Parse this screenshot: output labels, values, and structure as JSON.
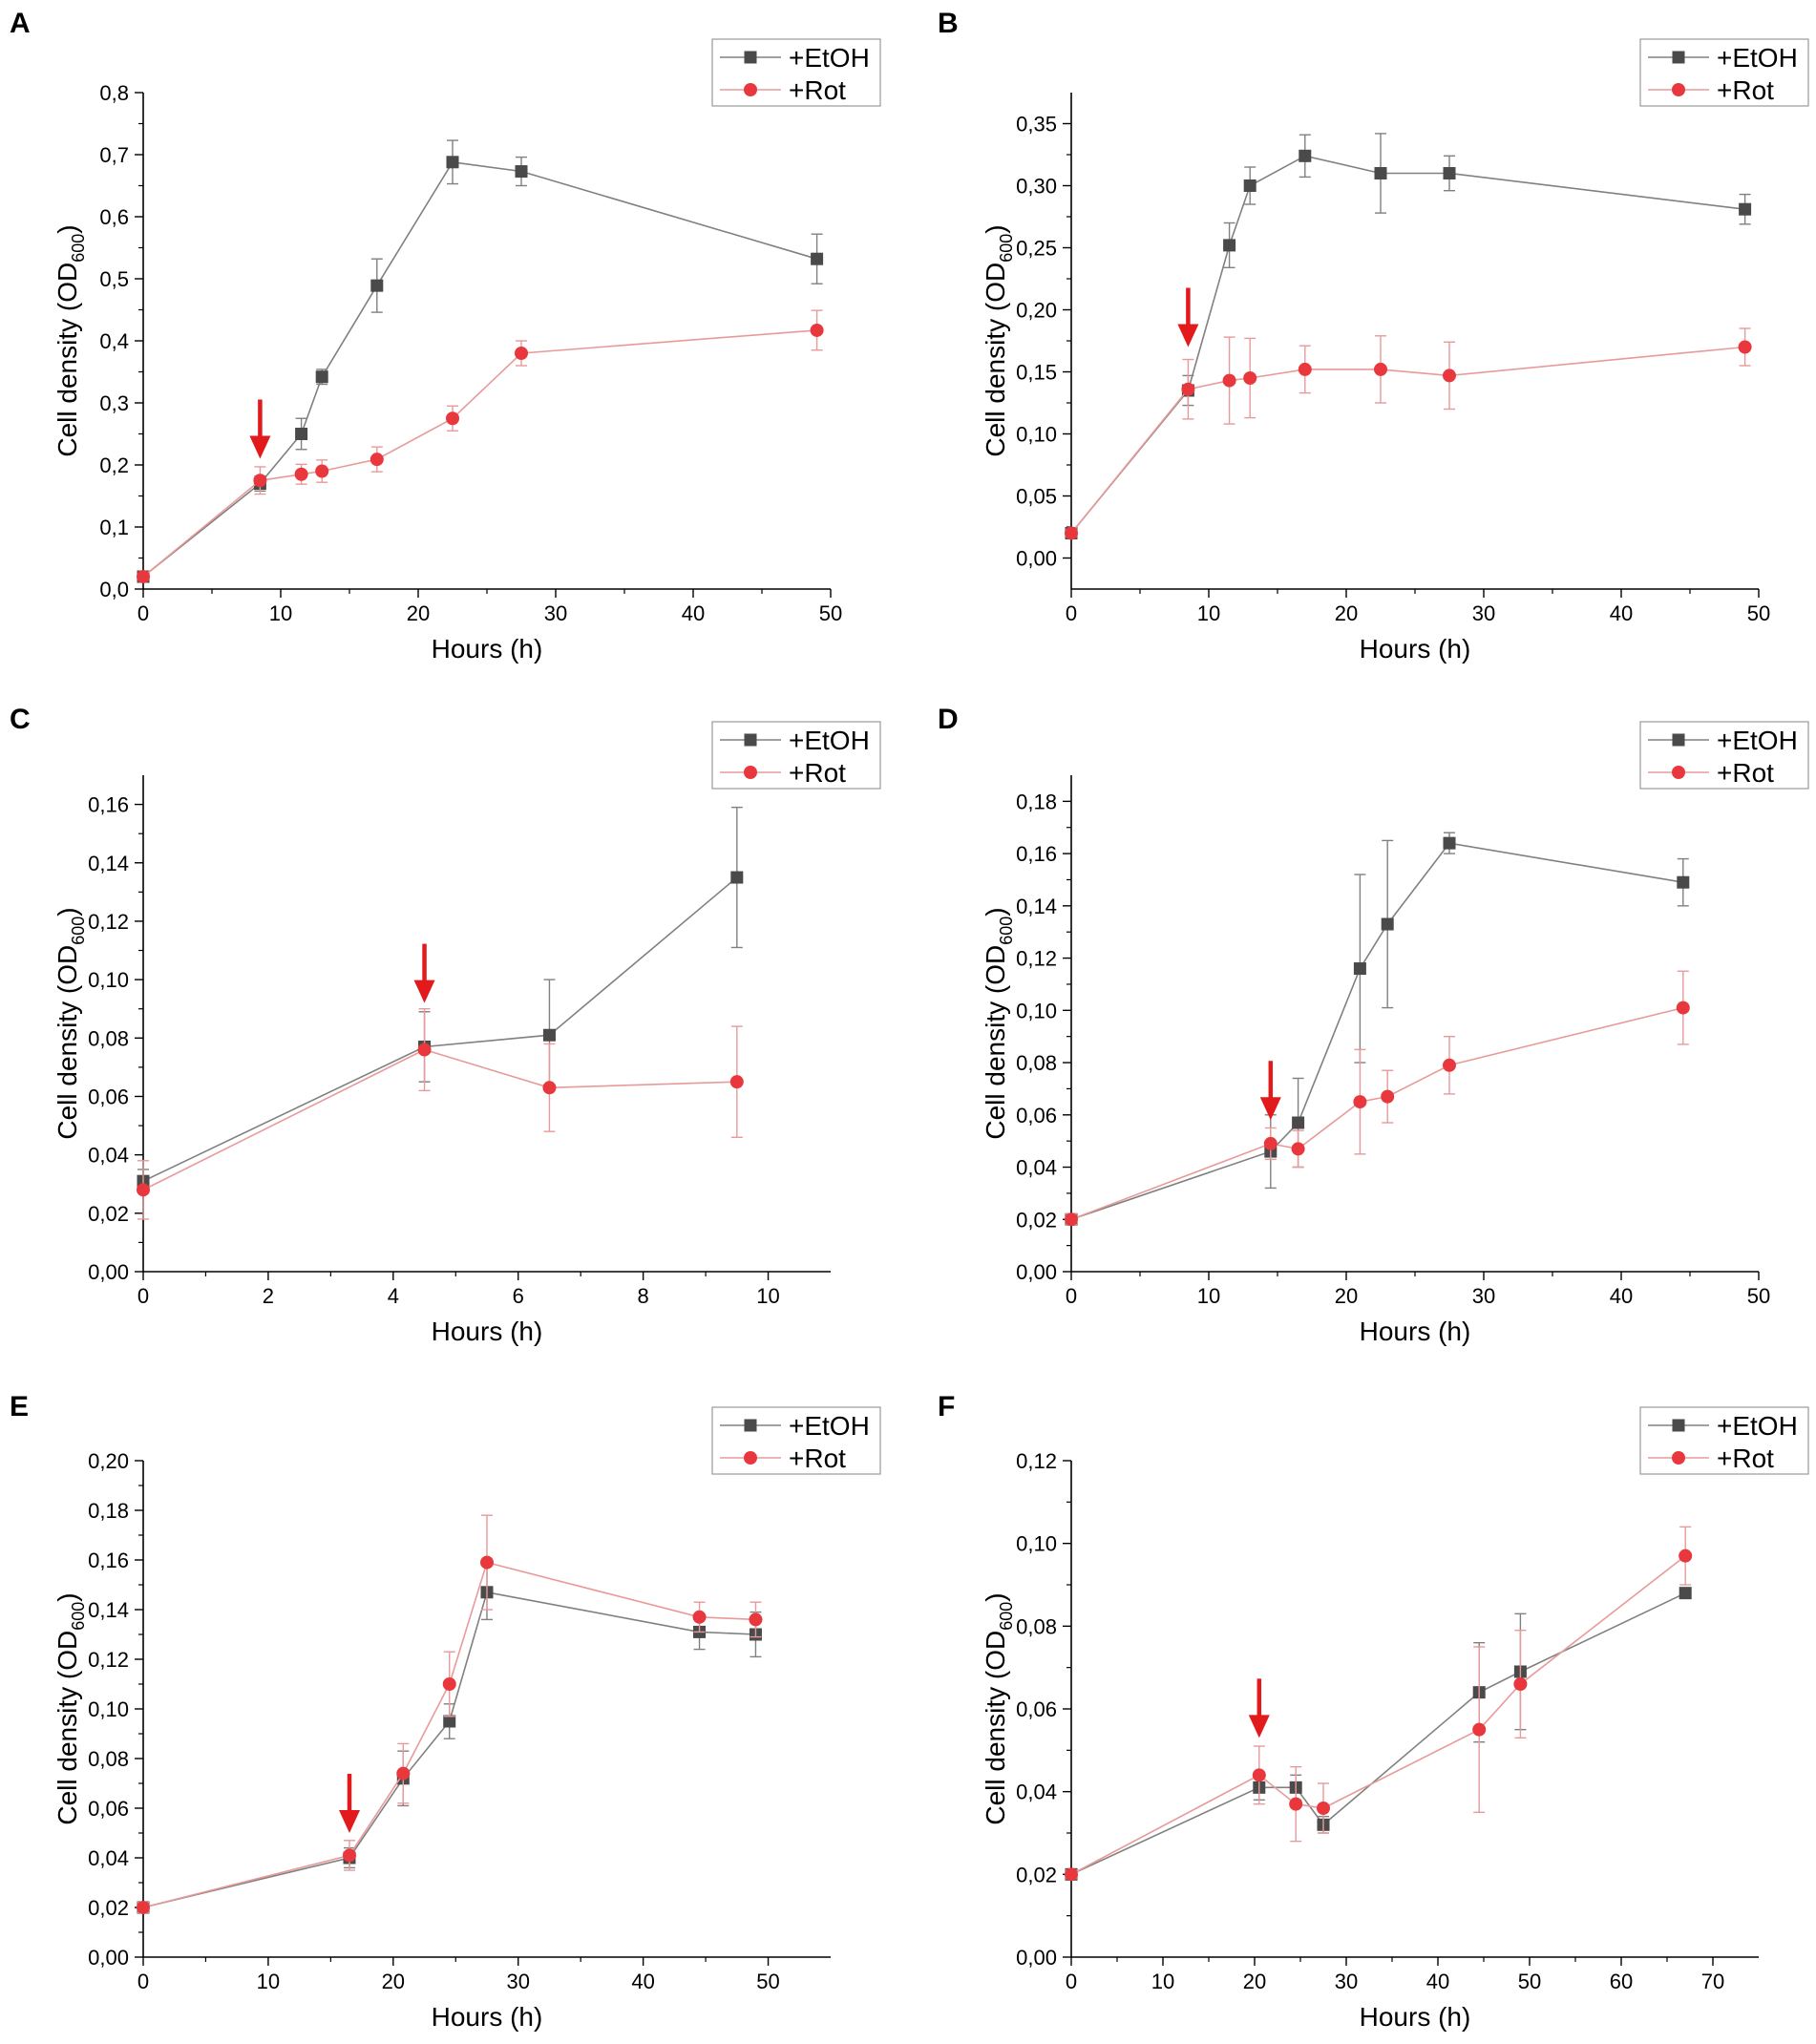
{
  "figure": {
    "legend_labels": [
      "+EtOH",
      "+Rot"
    ]
  },
  "colors": {
    "etoh": "#4a4a4a",
    "etoh_line": "#808080",
    "rot": "#e8383d",
    "rot_line": "#e89a9a",
    "arrow": "#e31a1c"
  },
  "chart_data": [
    {
      "panel": "A",
      "type": "line",
      "xlabel": "Hours (h)",
      "ylabel": "Cell density (OD",
      "ylabel_sub": "600",
      "ylabel_close": ")",
      "xlim": [
        0,
        50
      ],
      "ylim": [
        0,
        0.8
      ],
      "xticks": [
        0,
        10,
        20,
        30,
        40,
        50
      ],
      "xtick_labels": [
        "0",
        "10",
        "20",
        "30",
        "40",
        "50"
      ],
      "yticks": [
        0,
        0.1,
        0.2,
        0.3,
        0.4,
        0.5,
        0.6,
        0.7,
        0.8
      ],
      "ytick_labels": [
        "0,0",
        "0,1",
        "0,2",
        "0,3",
        "0,4",
        "0,5",
        "0,6",
        "0,7",
        "0,8"
      ],
      "arrow_at": [
        8.5,
        0.21
      ],
      "series": [
        {
          "name": "+EtOH",
          "x": [
            0,
            8.5,
            11.5,
            13,
            17,
            22.5,
            27.5,
            49
          ],
          "y": [
            0.02,
            0.17,
            0.25,
            0.342,
            0.489,
            0.688,
            0.673,
            0.532
          ],
          "err": [
            0.003,
            0.012,
            0.025,
            0.012,
            0.043,
            0.035,
            0.023,
            0.04
          ]
        },
        {
          "name": "+Rot",
          "x": [
            0,
            8.5,
            11.5,
            13,
            17,
            22.5,
            27.5,
            49
          ],
          "y": [
            0.02,
            0.175,
            0.185,
            0.19,
            0.209,
            0.275,
            0.38,
            0.417
          ],
          "err": [
            0.003,
            0.022,
            0.016,
            0.018,
            0.02,
            0.02,
            0.02,
            0.032
          ]
        }
      ]
    },
    {
      "panel": "B",
      "type": "line",
      "xlabel": "Hours (h)",
      "ylabel": "Cell density (OD",
      "ylabel_sub": "600",
      "ylabel_close": ")",
      "xlim": [
        0,
        50
      ],
      "ylim": [
        -0.025,
        0.375
      ],
      "xticks": [
        0,
        10,
        20,
        30,
        40,
        50
      ],
      "xtick_labels": [
        "0",
        "10",
        "20",
        "30",
        "40",
        "50"
      ],
      "yticks": [
        0,
        0.05,
        0.1,
        0.15,
        0.2,
        0.25,
        0.3,
        0.35
      ],
      "ytick_labels": [
        "0,00",
        "0,05",
        "0,10",
        "0,15",
        "0,20",
        "0,25",
        "0,30",
        "0,35"
      ],
      "arrow_at": [
        8.5,
        0.17
      ],
      "series": [
        {
          "name": "+EtOH",
          "x": [
            0,
            8.5,
            11.5,
            13,
            17,
            22.5,
            27.5,
            49
          ],
          "y": [
            0.02,
            0.135,
            0.252,
            0.3,
            0.324,
            0.31,
            0.31,
            0.281
          ],
          "err": [
            0.003,
            0.012,
            0.018,
            0.015,
            0.017,
            0.032,
            0.014,
            0.012
          ]
        },
        {
          "name": "+Rot",
          "x": [
            0,
            8.5,
            11.5,
            13,
            17,
            22.5,
            27.5,
            49
          ],
          "y": [
            0.02,
            0.136,
            0.143,
            0.145,
            0.152,
            0.152,
            0.147,
            0.17
          ],
          "err": [
            0.003,
            0.024,
            0.035,
            0.032,
            0.019,
            0.027,
            0.027,
            0.015
          ]
        }
      ]
    },
    {
      "panel": "C",
      "type": "line",
      "xlabel": "Hours (h)",
      "ylabel": "Cell density (OD",
      "ylabel_sub": "600",
      "ylabel_close": ")",
      "xlim": [
        0,
        11
      ],
      "ylim": [
        0,
        0.17
      ],
      "xticks": [
        0,
        2,
        4,
        6,
        8,
        10
      ],
      "xtick_labels": [
        "0",
        "2",
        "4",
        "6",
        "8",
        "10"
      ],
      "yticks": [
        0,
        0.02,
        0.04,
        0.06,
        0.08,
        0.1,
        0.12,
        0.14,
        0.16
      ],
      "ytick_labels": [
        "0,00",
        "0,02",
        "0,04",
        "0,06",
        "0,08",
        "0,10",
        "0,12",
        "0,14",
        "0,16"
      ],
      "arrow_at": [
        4.5,
        0.092
      ],
      "series": [
        {
          "name": "+EtOH",
          "x": [
            0,
            4.5,
            6.5,
            9.5
          ],
          "y": [
            0.031,
            0.077,
            0.081,
            0.135
          ],
          "err": [
            0.004,
            0.012,
            0.019,
            0.024
          ]
        },
        {
          "name": "+Rot",
          "x": [
            0,
            4.5,
            6.5,
            9.5
          ],
          "y": [
            0.028,
            0.076,
            0.063,
            0.065
          ],
          "err": [
            0.01,
            0.014,
            0.015,
            0.019
          ]
        }
      ]
    },
    {
      "panel": "D",
      "type": "line",
      "xlabel": "Hours (h)",
      "ylabel": "Cell density (OD",
      "ylabel_sub": "600",
      "ylabel_close": ")",
      "xlim": [
        0,
        50
      ],
      "ylim": [
        0,
        0.19
      ],
      "xticks": [
        0,
        10,
        20,
        30,
        40,
        50
      ],
      "xtick_labels": [
        "0",
        "10",
        "20",
        "30",
        "40",
        "50"
      ],
      "yticks": [
        0,
        0.02,
        0.04,
        0.06,
        0.08,
        0.1,
        0.12,
        0.14,
        0.16,
        0.18
      ],
      "ytick_labels": [
        "0,00",
        "0,02",
        "0,04",
        "0,06",
        "0,08",
        "0,10",
        "0,12",
        "0,14",
        "0,16",
        "0,18"
      ],
      "arrow_at": [
        14.5,
        0.058
      ],
      "series": [
        {
          "name": "+EtOH",
          "x": [
            0,
            14.5,
            16.5,
            21,
            23,
            27.5,
            44.5
          ],
          "y": [
            0.02,
            0.046,
            0.057,
            0.116,
            0.133,
            0.164,
            0.149
          ],
          "err": [
            0.002,
            0.014,
            0.017,
            0.036,
            0.032,
            0.004,
            0.009
          ]
        },
        {
          "name": "+Rot",
          "x": [
            0,
            14.5,
            16.5,
            21,
            23,
            27.5,
            44.5
          ],
          "y": [
            0.02,
            0.049,
            0.047,
            0.065,
            0.067,
            0.079,
            0.101
          ],
          "err": [
            0.002,
            0.006,
            0.007,
            0.02,
            0.01,
            0.011,
            0.014
          ]
        }
      ]
    },
    {
      "panel": "E",
      "type": "line",
      "xlabel": "Hours (h)",
      "ylabel": "Cell density (OD",
      "ylabel_sub": "600",
      "ylabel_close": ")",
      "xlim": [
        0,
        55
      ],
      "ylim": [
        0,
        0.2
      ],
      "xticks": [
        0,
        10,
        20,
        30,
        40,
        50
      ],
      "xtick_labels": [
        "0",
        "10",
        "20",
        "30",
        "40",
        "50"
      ],
      "yticks": [
        0,
        0.02,
        0.04,
        0.06,
        0.08,
        0.1,
        0.12,
        0.14,
        0.16,
        0.18,
        0.2
      ],
      "ytick_labels": [
        "0,00",
        "0,02",
        "0,04",
        "0,06",
        "0,08",
        "0,10",
        "0,12",
        "0,14",
        "0,16",
        "0,18",
        "0,20"
      ],
      "arrow_at": [
        16.5,
        0.05
      ],
      "series": [
        {
          "name": "+EtOH",
          "x": [
            0,
            16.5,
            20.8,
            24.5,
            27.5,
            44.5,
            49
          ],
          "y": [
            0.02,
            0.04,
            0.072,
            0.095,
            0.147,
            0.131,
            0.13
          ],
          "err": [
            0.002,
            0.004,
            0.011,
            0.007,
            0.011,
            0.007,
            0.009
          ]
        },
        {
          "name": "+Rot",
          "x": [
            0,
            16.5,
            20.8,
            24.5,
            27.5,
            44.5,
            49
          ],
          "y": [
            0.02,
            0.041,
            0.074,
            0.11,
            0.159,
            0.137,
            0.136
          ],
          "err": [
            0.002,
            0.006,
            0.012,
            0.013,
            0.019,
            0.006,
            0.007
          ]
        }
      ]
    },
    {
      "panel": "F",
      "type": "line",
      "xlabel": "Hours (h)",
      "ylabel": "Cell density (OD",
      "ylabel_sub": "600",
      "ylabel_close": ")",
      "xlim": [
        0,
        75
      ],
      "ylim": [
        0,
        0.12
      ],
      "xticks": [
        0,
        10,
        20,
        30,
        40,
        50,
        60,
        70
      ],
      "xtick_labels": [
        "0",
        "10",
        "20",
        "30",
        "40",
        "50",
        "60",
        "70"
      ],
      "yticks": [
        0,
        0.02,
        0.04,
        0.06,
        0.08,
        0.1,
        0.12
      ],
      "ytick_labels": [
        "0,00",
        "0,02",
        "0,04",
        "0,06",
        "0,08",
        "0,10",
        "0,12"
      ],
      "arrow_at": [
        20.5,
        0.053
      ],
      "series": [
        {
          "name": "+EtOH",
          "x": [
            0,
            20.5,
            24.5,
            27.5,
            44.5,
            49,
            67
          ],
          "y": [
            0.02,
            0.041,
            0.041,
            0.032,
            0.064,
            0.069,
            0.088
          ],
          "err": [
            0.001,
            0.003,
            0.003,
            0.002,
            0.012,
            0.014,
            0.001
          ]
        },
        {
          "name": "+Rot",
          "x": [
            0,
            20.5,
            24.5,
            27.5,
            44.5,
            49,
            67
          ],
          "y": [
            0.02,
            0.044,
            0.037,
            0.036,
            0.055,
            0.066,
            0.097
          ],
          "err": [
            0.001,
            0.007,
            0.009,
            0.006,
            0.02,
            0.013,
            0.007
          ]
        }
      ]
    }
  ]
}
